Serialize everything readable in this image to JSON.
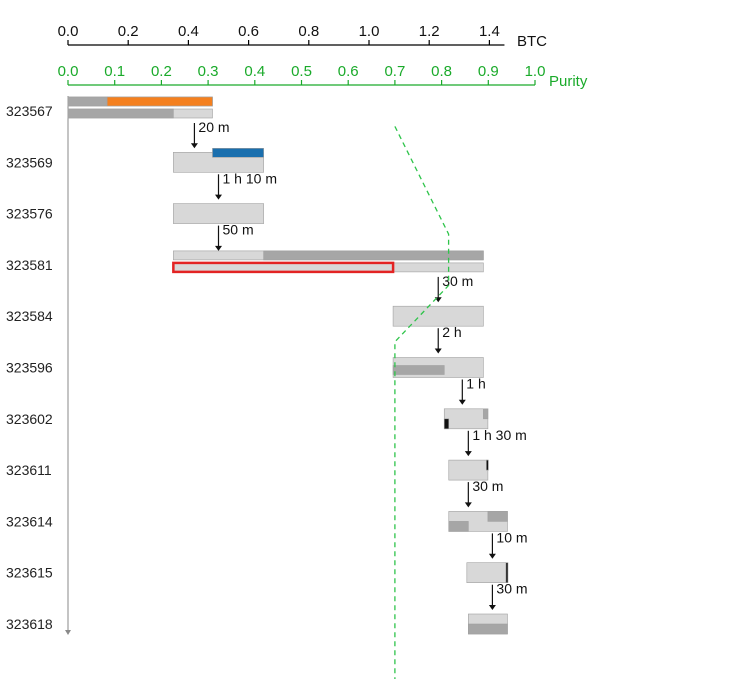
{
  "chart_data": {
    "type": "gantt",
    "btc_axis": {
      "label": "BTC",
      "ticks": [
        "0.0",
        "0.2",
        "0.4",
        "0.6",
        "0.8",
        "1.0",
        "1.2",
        "1.4"
      ],
      "tick_values": [
        0.0,
        0.2,
        0.4,
        0.6,
        0.8,
        1.0,
        1.2,
        1.4
      ],
      "range": [
        0,
        1.45
      ],
      "color": "#000000"
    },
    "purity_axis": {
      "label": "Purity",
      "ticks": [
        "0.0",
        "0.1",
        "0.2",
        "0.3",
        "0.4",
        "0.5",
        "0.6",
        "0.7",
        "0.8",
        "0.9",
        "1.0"
      ],
      "tick_values": [
        0.0,
        0.1,
        0.2,
        0.3,
        0.4,
        0.5,
        0.6,
        0.7,
        0.8,
        0.9,
        1.0
      ],
      "range": [
        0,
        1.0
      ],
      "color": "#1aaa2a"
    },
    "blocks": [
      {
        "label": "323567",
        "offset": 0.0,
        "bars": [
          {
            "start": 0.0,
            "width": 0.48,
            "row": "top",
            "fill": "#d8d8d8"
          },
          {
            "start": 0.0,
            "width": 0.13,
            "row": "top",
            "fill": "#a6a6a6"
          },
          {
            "start": 0.13,
            "width": 0.35,
            "row": "top",
            "fill": "#f4801f"
          },
          {
            "start": 0.0,
            "width": 0.48,
            "row": "bottom",
            "fill": "#d8d8d8"
          },
          {
            "start": 0.0,
            "width": 0.35,
            "row": "bottom",
            "fill": "#a6a6a6"
          }
        ]
      },
      {
        "label": "323569",
        "offset": 0.35,
        "bars": [
          {
            "start": 0.35,
            "width": 0.3,
            "row": "full",
            "fill": "#d8d8d8"
          },
          {
            "start": 0.48,
            "width": 0.17,
            "row": "top",
            "fill": "#1a6fae"
          }
        ]
      },
      {
        "label": "323576",
        "offset": 0.35,
        "bars": [
          {
            "start": 0.35,
            "width": 0.3,
            "row": "full",
            "fill": "#d8d8d8"
          }
        ]
      },
      {
        "label": "323581",
        "offset": 0.35,
        "bars": [
          {
            "start": 0.35,
            "width": 1.03,
            "row": "top",
            "fill": "#d8d8d8"
          },
          {
            "start": 0.65,
            "width": 0.73,
            "row": "top",
            "fill": "#a6a6a6"
          },
          {
            "start": 0.35,
            "width": 1.03,
            "row": "bottom",
            "fill": "#d8d8d8"
          },
          {
            "start": 0.35,
            "width": 0.73,
            "row": "bottom",
            "fill": "#d8d8d8",
            "highlight": "#e32323"
          }
        ]
      },
      {
        "label": "323584",
        "offset": 1.08,
        "bars": [
          {
            "start": 1.08,
            "width": 0.3,
            "row": "full",
            "fill": "#d8d8d8"
          }
        ]
      },
      {
        "label": "323596",
        "offset": 1.08,
        "bars": [
          {
            "start": 1.08,
            "width": 0.3,
            "row": "full",
            "fill": "#d8d8d8"
          },
          {
            "start": 1.08,
            "width": 0.17,
            "row": "bottom",
            "fill": "#a6a6a6"
          }
        ]
      },
      {
        "label": "323602",
        "offset": 1.25,
        "bars": [
          {
            "start": 1.25,
            "width": 0.145,
            "row": "full",
            "fill": "#d8d8d8"
          },
          {
            "start": 1.25,
            "width": 0.015,
            "row": "bottom-half",
            "fill": "#111111"
          },
          {
            "start": 1.38,
            "width": 0.015,
            "row": "top-half",
            "fill": "#a6a6a6"
          }
        ]
      },
      {
        "label": "323611",
        "offset": 1.265,
        "bars": [
          {
            "start": 1.265,
            "width": 0.13,
            "row": "full",
            "fill": "#d8d8d8"
          },
          {
            "start": 1.39,
            "width": 0.005,
            "row": "top-half",
            "fill": "#111111"
          }
        ]
      },
      {
        "label": "323614",
        "offset": 1.265,
        "bars": [
          {
            "start": 1.265,
            "width": 0.195,
            "row": "full",
            "fill": "#d8d8d8"
          },
          {
            "start": 1.395,
            "width": 0.065,
            "row": "top-half",
            "fill": "#a6a6a6"
          },
          {
            "start": 1.265,
            "width": 0.065,
            "row": "bottom-half",
            "fill": "#a6a6a6"
          }
        ]
      },
      {
        "label": "323615",
        "offset": 1.325,
        "bars": [
          {
            "start": 1.325,
            "width": 0.135,
            "row": "full",
            "fill": "#d8d8d8"
          },
          {
            "start": 1.455,
            "width": 0.005,
            "row": "full",
            "fill": "#111111"
          }
        ]
      },
      {
        "label": "323618",
        "offset": 1.33,
        "bars": [
          {
            "start": 1.33,
            "width": 0.13,
            "row": "full",
            "fill": "#d8d8d8"
          },
          {
            "start": 1.33,
            "width": 0.13,
            "row": "bottom-half",
            "fill": "#a6a6a6"
          }
        ]
      }
    ],
    "delays": [
      {
        "text": "20 m",
        "at": 0.42
      },
      {
        "text": "1 h 10 m",
        "at": 0.5
      },
      {
        "text": "50 m",
        "at": 0.5
      },
      {
        "text": "30 m",
        "at": 1.23
      },
      {
        "text": "2 h",
        "at": 1.23
      },
      {
        "text": "1 h",
        "at": 1.31
      },
      {
        "text": "1 h 30 m",
        "at": 1.33
      },
      {
        "text": "30 m",
        "at": 1.33
      },
      {
        "text": "10 m",
        "at": 1.41
      },
      {
        "text": "30 m",
        "at": 1.41
      }
    ],
    "purity_line": {
      "color": "#2ec44a",
      "points": [
        [
          0.7,
          0.8
        ],
        [
          0.815,
          2.9
        ],
        [
          0.815,
          3.9
        ],
        [
          0.7,
          5.0
        ],
        [
          0.7,
          12.0
        ]
      ]
    }
  }
}
